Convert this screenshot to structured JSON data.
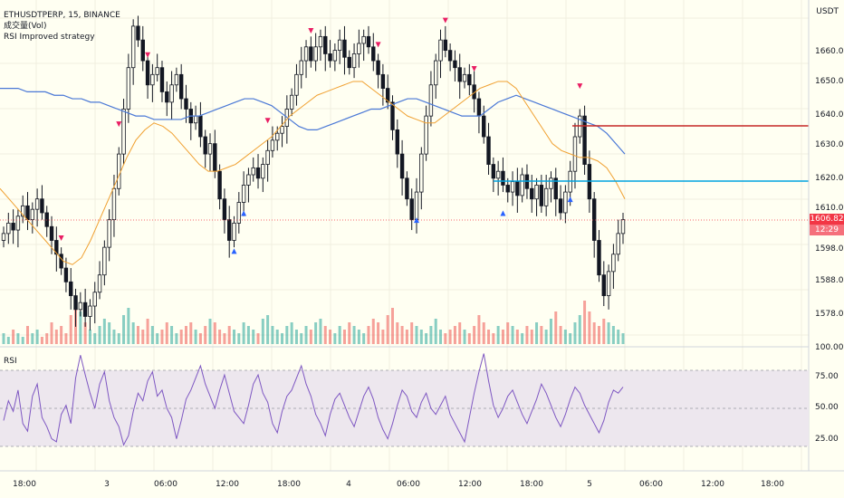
{
  "symbol": {
    "line": "ETHUSDTPERP, 15, BINANCE"
  },
  "indicators": {
    "volume": "成交量(Vol)",
    "strategy": "RSI Improved strategy",
    "rsi_pane": "RSI"
  },
  "currency": "USDT",
  "price_scale": {
    "ticks": [
      "1660.00",
      "1650.00",
      "1640.00",
      "1630.00",
      "1620.00",
      "1610.00",
      "1598.00",
      "1588.00",
      "1578.00"
    ],
    "bottom": "100.00"
  },
  "current_price": {
    "value": "1606.82",
    "countdown": "12:29"
  },
  "rsi_scale": {
    "ticks": [
      "75.00",
      "50.00",
      "25.00"
    ]
  },
  "time_axis": {
    "labels": [
      "18:00",
      "3",
      "06:00",
      "12:00",
      "18:00",
      "4",
      "06:00",
      "12:00",
      "18:00",
      "5",
      "06:00",
      "12:00",
      "18:00"
    ]
  },
  "colors": {
    "up": "#26a69a",
    "down": "#ef5350",
    "candle": "#131722",
    "ma_slow": "#4a78d6",
    "ma_fast": "#f0a030",
    "rsi": "#7e57c2",
    "short_arrow": "#e91e63",
    "long_arrow": "#2962ff",
    "bg": "#fffff2"
  },
  "chart_data": {
    "type": "candlestick",
    "ylim": [
      1570,
      1668
    ],
    "closes": [
      1602,
      1605,
      1603,
      1607,
      1610,
      1606,
      1609,
      1612,
      1608,
      1604,
      1600,
      1596,
      1592,
      1588,
      1584,
      1580,
      1582,
      1578,
      1581,
      1585,
      1590,
      1598,
      1606,
      1615,
      1625,
      1638,
      1650,
      1662,
      1658,
      1652,
      1645,
      1648,
      1650,
      1643,
      1640,
      1645,
      1648,
      1641,
      1638,
      1634,
      1636,
      1630,
      1625,
      1628,
      1620,
      1612,
      1606,
      1600,
      1605,
      1611,
      1616,
      1619,
      1621,
      1618,
      1622,
      1626,
      1629,
      1631,
      1633,
      1638,
      1642,
      1648,
      1652,
      1656,
      1652,
      1656,
      1659,
      1654,
      1652,
      1655,
      1658,
      1653,
      1650,
      1654,
      1657,
      1659,
      1656,
      1652,
      1648,
      1644,
      1640,
      1632,
      1625,
      1618,
      1612,
      1606,
      1614,
      1625,
      1636,
      1645,
      1652,
      1658,
      1655,
      1652,
      1650,
      1646,
      1648,
      1645,
      1641,
      1636,
      1630,
      1622,
      1618,
      1620,
      1616,
      1614,
      1617,
      1613,
      1619,
      1615,
      1612,
      1616,
      1610,
      1615,
      1618,
      1612,
      1608,
      1614,
      1620,
      1630,
      1636,
      1622,
      1612,
      1600,
      1590,
      1584,
      1591,
      1596,
      1602,
      1606
    ],
    "ma_slow": [
      1644,
      1644,
      1644,
      1643,
      1643,
      1643,
      1642,
      1642,
      1641,
      1641,
      1640,
      1640,
      1639,
      1638,
      1637,
      1636,
      1636,
      1635,
      1635,
      1635,
      1635,
      1636,
      1636,
      1637,
      1638,
      1639,
      1640,
      1641,
      1641,
      1640,
      1639,
      1637,
      1635,
      1633,
      1632,
      1632,
      1633,
      1634,
      1635,
      1636,
      1637,
      1638,
      1638,
      1639,
      1640,
      1641,
      1641,
      1640,
      1639,
      1638,
      1637,
      1636,
      1636,
      1636,
      1638,
      1640,
      1641,
      1642,
      1641,
      1640,
      1639,
      1638,
      1637,
      1636,
      1635,
      1634,
      1633,
      1631,
      1628,
      1625
    ],
    "ma_fast": [
      1615,
      1612,
      1609,
      1606,
      1603,
      1600,
      1597,
      1594,
      1593,
      1595,
      1600,
      1606,
      1612,
      1618,
      1624,
      1629,
      1632,
      1634,
      1633,
      1631,
      1628,
      1625,
      1622,
      1620,
      1620,
      1621,
      1622,
      1624,
      1626,
      1628,
      1630,
      1633,
      1636,
      1638,
      1640,
      1642,
      1643,
      1644,
      1645,
      1646,
      1646,
      1644,
      1642,
      1640,
      1638,
      1636,
      1635,
      1634,
      1634,
      1636,
      1638,
      1640,
      1642,
      1644,
      1645,
      1646,
      1646,
      1644,
      1640,
      1636,
      1632,
      1628,
      1626,
      1625,
      1624,
      1624,
      1623,
      1621,
      1617,
      1612
    ],
    "rsi": [
      42,
      55,
      48,
      62,
      40,
      35,
      58,
      66,
      44,
      38,
      30,
      28,
      46,
      52,
      40,
      70,
      85,
      72,
      60,
      50,
      66,
      74,
      55,
      44,
      38,
      26,
      32,
      48,
      60,
      55,
      68,
      74,
      58,
      62,
      50,
      44,
      30,
      42,
      56,
      62,
      70,
      78,
      66,
      58,
      50,
      62,
      72,
      60,
      48,
      44,
      40,
      52,
      66,
      72,
      60,
      54,
      40,
      34,
      48,
      58,
      62,
      70,
      78,
      66,
      58,
      46,
      40,
      32,
      46,
      56,
      60,
      52,
      44,
      38,
      48,
      58,
      64,
      56,
      44,
      36,
      30,
      40,
      52,
      62,
      58,
      48,
      44,
      54,
      60,
      50,
      46,
      52,
      58,
      46,
      40,
      34,
      28,
      44,
      60,
      74,
      86,
      68,
      52,
      44,
      50,
      58,
      62,
      54,
      46,
      40,
      48,
      56,
      66,
      60,
      52,
      44,
      38,
      46,
      56,
      64,
      60,
      52,
      46,
      40,
      34,
      42,
      54,
      62,
      60,
      64
    ],
    "volume": [
      3,
      2,
      4,
      3,
      2,
      5,
      3,
      4,
      2,
      3,
      6,
      4,
      5,
      3,
      8,
      12,
      9,
      6,
      4,
      3,
      5,
      7,
      6,
      4,
      3,
      8,
      10,
      6,
      5,
      4,
      7,
      5,
      3,
      4,
      6,
      5,
      3,
      4,
      5,
      6,
      4,
      3,
      5,
      7,
      6,
      4,
      3,
      5,
      4,
      3,
      6,
      5,
      4,
      3,
      7,
      8,
      5,
      4,
      3,
      5,
      6,
      4,
      3,
      5,
      4,
      6,
      7,
      5,
      4,
      3,
      5,
      4,
      6,
      5,
      4,
      3,
      5,
      7,
      6,
      4,
      8,
      10,
      6,
      5,
      4,
      6,
      5,
      4,
      3,
      5,
      7,
      4,
      3,
      4,
      5,
      6,
      4,
      3,
      5,
      8,
      6,
      4,
      3,
      5,
      4,
      6,
      5,
      4,
      3,
      5,
      4,
      6,
      5,
      4,
      7,
      9,
      5,
      4,
      3,
      6,
      8,
      12,
      9,
      6,
      5,
      7,
      6,
      5,
      4,
      3
    ]
  }
}
